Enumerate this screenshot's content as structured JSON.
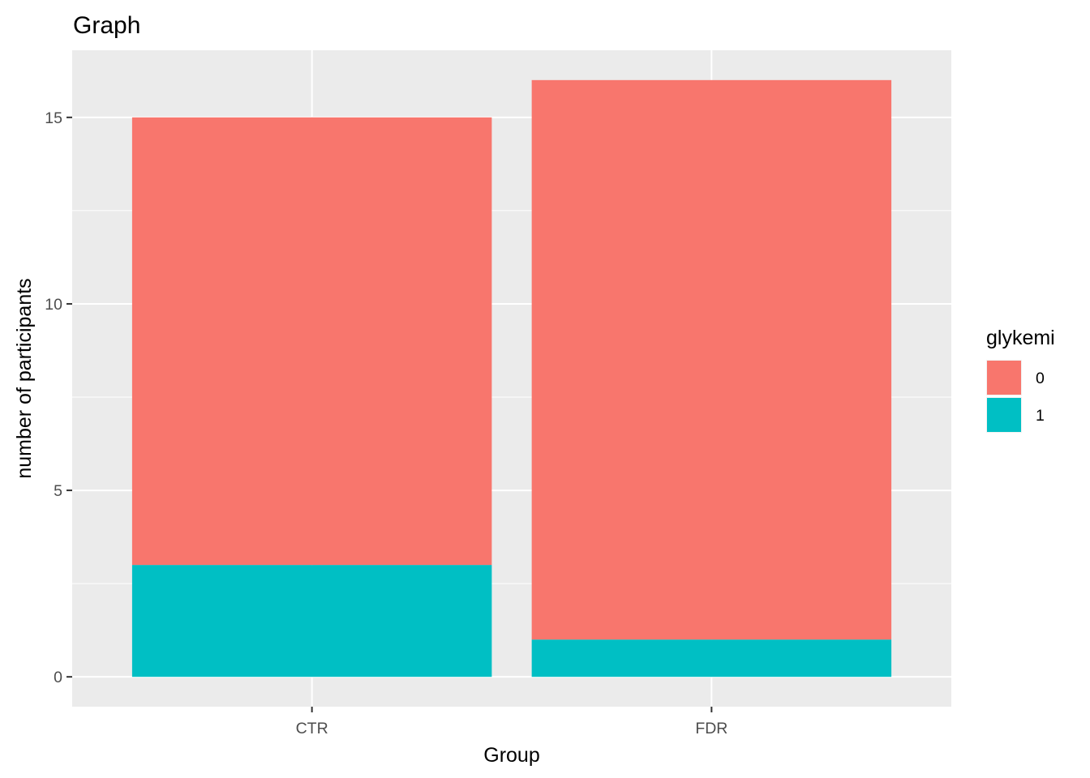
{
  "chart_data": {
    "type": "bar",
    "stacked": true,
    "title": "Graph",
    "xlabel": "Group",
    "ylabel": "number of participants",
    "categories": [
      "CTR",
      "FDR"
    ],
    "series": [
      {
        "name": "0",
        "values": [
          12,
          15
        ],
        "color": "#F8766D"
      },
      {
        "name": "1",
        "values": [
          3,
          1
        ],
        "color": "#00BFC4"
      }
    ],
    "ylim": [
      -0.8,
      16.8
    ],
    "yticks": [
      0,
      5,
      10,
      15
    ],
    "ytick_labels": [
      "0",
      "5",
      "10",
      "15"
    ],
    "grid": true,
    "panel_background": "#EBEBEB",
    "grid_color": "#FFFFFF",
    "legend": {
      "title": "glykemi",
      "position": "right",
      "entries": [
        "0",
        "1"
      ]
    }
  }
}
